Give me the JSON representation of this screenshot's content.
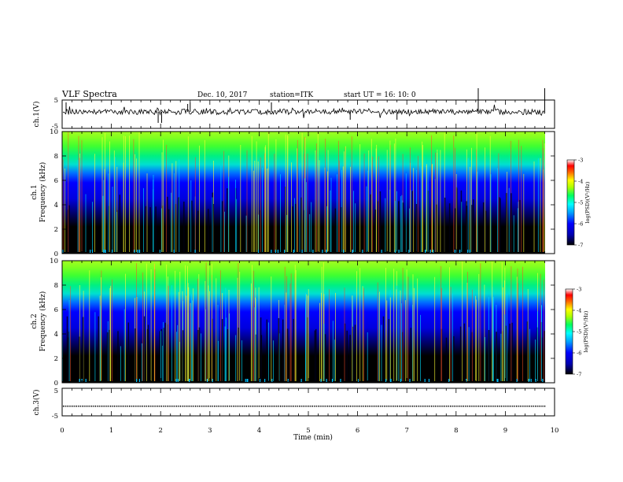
{
  "header": {
    "title": "VLF Spectra",
    "date": "Dec. 10, 2017",
    "station": "station=ITK",
    "start_ut": "start UT =   16: 10: 0"
  },
  "chart_data": [
    {
      "type": "line",
      "ylabel": "ch.1(V)",
      "ylim": [
        -5,
        5
      ],
      "ytick_labels": [
        "5",
        "-5"
      ],
      "x_range_min": [
        0,
        9.83
      ]
    },
    {
      "type": "heatmap",
      "ylabel_top": "ch.1",
      "ylabel": "Frequency (kHz)",
      "ylim": [
        0,
        10
      ],
      "ytick_labels": [
        "0",
        "2",
        "4",
        "6",
        "8",
        "10"
      ],
      "xlim": [
        0,
        10
      ],
      "colorbar": {
        "label": "log(PSD)(V²/Hz)",
        "range": [
          -7,
          -3
        ],
        "tick_labels": [
          "-3",
          "-4",
          "-5",
          "-6",
          "-7"
        ]
      }
    },
    {
      "type": "heatmap",
      "ylabel_top": "ch.2",
      "ylabel": "Frequency (kHz)",
      "ylim": [
        0,
        10
      ],
      "ytick_labels": [
        "0",
        "2",
        "4",
        "6",
        "8",
        "10"
      ],
      "xlim": [
        0,
        10
      ],
      "colorbar": {
        "label": "log(PSD)(V²/Hz)",
        "range": [
          -7,
          -3
        ],
        "tick_labels": [
          "-3",
          "-4",
          "-5",
          "-6",
          "-7"
        ]
      }
    },
    {
      "type": "line",
      "ylabel": "ch.3(V)",
      "ylim": [
        -5,
        5
      ],
      "ytick_labels": [
        "5",
        "-5"
      ],
      "value": -1.5,
      "x_range_min": [
        0,
        9.83
      ]
    }
  ],
  "xaxis": {
    "label": "Time (min)",
    "xlim": [
      0,
      10
    ],
    "tick_labels": [
      "0",
      "1",
      "2",
      "3",
      "4",
      "5",
      "6",
      "7",
      "8",
      "9",
      "10"
    ]
  },
  "colors": {
    "spectrogram_scale": [
      "#000000",
      "#0000ff",
      "#00ffff",
      "#00ff00",
      "#ffff00",
      "#ff0000",
      "#ffffff"
    ]
  }
}
